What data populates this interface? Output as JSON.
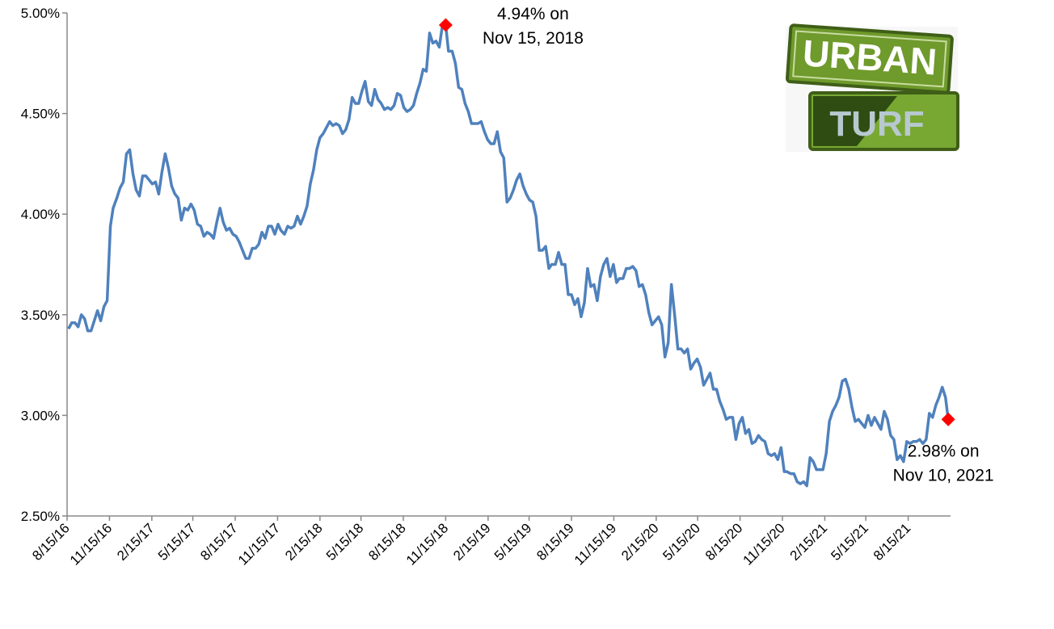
{
  "chart_data": {
    "type": "line",
    "x": [
      "2016-08-18",
      "2016-08-25",
      "2016-09-01",
      "2016-09-08",
      "2016-09-15",
      "2016-09-22",
      "2016-09-29",
      "2016-10-06",
      "2016-10-13",
      "2016-10-20",
      "2016-10-27",
      "2016-11-03",
      "2016-11-10",
      "2016-11-17",
      "2016-11-23",
      "2016-12-01",
      "2016-12-08",
      "2016-12-15",
      "2016-12-22",
      "2016-12-29",
      "2017-01-05",
      "2017-01-12",
      "2017-01-19",
      "2017-01-26",
      "2017-02-02",
      "2017-02-09",
      "2017-02-16",
      "2017-02-23",
      "2017-03-02",
      "2017-03-09",
      "2017-03-16",
      "2017-03-23",
      "2017-03-30",
      "2017-04-06",
      "2017-04-13",
      "2017-04-20",
      "2017-04-27",
      "2017-05-04",
      "2017-05-11",
      "2017-05-18",
      "2017-05-25",
      "2017-06-01",
      "2017-06-08",
      "2017-06-15",
      "2017-06-22",
      "2017-06-29",
      "2017-07-06",
      "2017-07-13",
      "2017-07-20",
      "2017-07-27",
      "2017-08-03",
      "2017-08-10",
      "2017-08-17",
      "2017-08-24",
      "2017-08-31",
      "2017-09-07",
      "2017-09-14",
      "2017-09-21",
      "2017-09-28",
      "2017-10-05",
      "2017-10-12",
      "2017-10-19",
      "2017-10-26",
      "2017-11-02",
      "2017-11-09",
      "2017-11-16",
      "2017-11-22",
      "2017-11-30",
      "2017-12-07",
      "2017-12-14",
      "2017-12-21",
      "2017-12-28",
      "2018-01-04",
      "2018-01-11",
      "2018-01-18",
      "2018-01-25",
      "2018-02-01",
      "2018-02-08",
      "2018-02-15",
      "2018-02-22",
      "2018-03-01",
      "2018-03-08",
      "2018-03-15",
      "2018-03-22",
      "2018-03-29",
      "2018-04-05",
      "2018-04-12",
      "2018-04-19",
      "2018-04-26",
      "2018-05-03",
      "2018-05-10",
      "2018-05-17",
      "2018-05-24",
      "2018-05-31",
      "2018-06-07",
      "2018-06-14",
      "2018-06-21",
      "2018-06-28",
      "2018-07-05",
      "2018-07-12",
      "2018-07-19",
      "2018-07-26",
      "2018-08-02",
      "2018-08-09",
      "2018-08-16",
      "2018-08-23",
      "2018-08-30",
      "2018-09-06",
      "2018-09-13",
      "2018-09-20",
      "2018-09-27",
      "2018-10-04",
      "2018-10-11",
      "2018-10-18",
      "2018-10-25",
      "2018-11-01",
      "2018-11-08",
      "2018-11-15",
      "2018-11-21",
      "2018-11-29",
      "2018-12-06",
      "2018-12-13",
      "2018-12-20",
      "2018-12-27",
      "2019-01-03",
      "2019-01-10",
      "2019-01-17",
      "2019-01-24",
      "2019-01-31",
      "2019-02-07",
      "2019-02-14",
      "2019-02-21",
      "2019-02-28",
      "2019-03-07",
      "2019-03-14",
      "2019-03-21",
      "2019-03-28",
      "2019-04-04",
      "2019-04-11",
      "2019-04-18",
      "2019-04-25",
      "2019-05-02",
      "2019-05-09",
      "2019-05-16",
      "2019-05-23",
      "2019-05-30",
      "2019-06-06",
      "2019-06-13",
      "2019-06-20",
      "2019-06-27",
      "2019-07-03",
      "2019-07-11",
      "2019-07-18",
      "2019-07-25",
      "2019-08-01",
      "2019-08-08",
      "2019-08-15",
      "2019-08-22",
      "2019-08-29",
      "2019-09-05",
      "2019-09-12",
      "2019-09-19",
      "2019-09-26",
      "2019-10-03",
      "2019-10-10",
      "2019-10-17",
      "2019-10-24",
      "2019-10-31",
      "2019-11-07",
      "2019-11-14",
      "2019-11-21",
      "2019-11-27",
      "2019-12-05",
      "2019-12-12",
      "2019-12-19",
      "2019-12-26",
      "2020-01-02",
      "2020-01-09",
      "2020-01-16",
      "2020-01-23",
      "2020-01-30",
      "2020-02-06",
      "2020-02-13",
      "2020-02-20",
      "2020-02-27",
      "2020-03-05",
      "2020-03-12",
      "2020-03-19",
      "2020-03-26",
      "2020-04-02",
      "2020-04-09",
      "2020-04-16",
      "2020-04-23",
      "2020-04-30",
      "2020-05-07",
      "2020-05-14",
      "2020-05-21",
      "2020-05-28",
      "2020-06-04",
      "2020-06-11",
      "2020-06-18",
      "2020-06-25",
      "2020-07-02",
      "2020-07-09",
      "2020-07-16",
      "2020-07-23",
      "2020-07-30",
      "2020-08-06",
      "2020-08-13",
      "2020-08-20",
      "2020-08-27",
      "2020-09-03",
      "2020-09-10",
      "2020-09-17",
      "2020-09-24",
      "2020-10-01",
      "2020-10-08",
      "2020-10-15",
      "2020-10-22",
      "2020-10-29",
      "2020-11-05",
      "2020-11-12",
      "2020-11-19",
      "2020-11-25",
      "2020-12-03",
      "2020-12-10",
      "2020-12-17",
      "2020-12-24",
      "2020-12-31",
      "2021-01-07",
      "2021-01-14",
      "2021-01-21",
      "2021-01-28",
      "2021-02-04",
      "2021-02-11",
      "2021-02-18",
      "2021-02-25",
      "2021-03-04",
      "2021-03-11",
      "2021-03-18",
      "2021-03-25",
      "2021-04-01",
      "2021-04-08",
      "2021-04-15",
      "2021-04-22",
      "2021-04-29",
      "2021-05-06",
      "2021-05-13",
      "2021-05-20",
      "2021-05-27",
      "2021-06-03",
      "2021-06-10",
      "2021-06-17",
      "2021-06-24",
      "2021-07-01",
      "2021-07-08",
      "2021-07-15",
      "2021-07-22",
      "2021-07-29",
      "2021-08-05",
      "2021-08-12",
      "2021-08-19",
      "2021-08-26",
      "2021-09-02",
      "2021-09-09",
      "2021-09-16",
      "2021-09-23",
      "2021-09-30",
      "2021-10-07",
      "2021-10-14",
      "2021-10-21",
      "2021-10-28",
      "2021-11-04",
      "2021-11-10"
    ],
    "series": [
      {
        "color": "#4f81bd",
        "values": [
          3.43,
          3.46,
          3.46,
          3.44,
          3.5,
          3.48,
          3.42,
          3.42,
          3.47,
          3.52,
          3.47,
          3.54,
          3.57,
          3.94,
          4.03,
          4.08,
          4.13,
          4.16,
          4.3,
          4.32,
          4.2,
          4.12,
          4.09,
          4.19,
          4.19,
          4.17,
          4.15,
          4.16,
          4.1,
          4.21,
          4.3,
          4.23,
          4.14,
          4.1,
          4.08,
          3.97,
          4.03,
          4.02,
          4.05,
          4.02,
          3.95,
          3.94,
          3.89,
          3.91,
          3.9,
          3.88,
          3.96,
          4.03,
          3.96,
          3.92,
          3.93,
          3.9,
          3.89,
          3.86,
          3.82,
          3.78,
          3.78,
          3.83,
          3.83,
          3.85,
          3.91,
          3.88,
          3.94,
          3.94,
          3.9,
          3.95,
          3.92,
          3.9,
          3.94,
          3.93,
          3.94,
          3.99,
          3.95,
          3.99,
          4.04,
          4.15,
          4.22,
          4.32,
          4.38,
          4.4,
          4.43,
          4.46,
          4.44,
          4.45,
          4.44,
          4.4,
          4.42,
          4.47,
          4.58,
          4.55,
          4.55,
          4.61,
          4.66,
          4.56,
          4.54,
          4.62,
          4.57,
          4.55,
          4.52,
          4.53,
          4.52,
          4.54,
          4.6,
          4.59,
          4.53,
          4.51,
          4.52,
          4.54,
          4.6,
          4.65,
          4.72,
          4.71,
          4.9,
          4.85,
          4.86,
          4.83,
          4.94,
          4.94,
          4.81,
          4.81,
          4.75,
          4.63,
          4.62,
          4.55,
          4.51,
          4.45,
          4.45,
          4.45,
          4.46,
          4.41,
          4.37,
          4.35,
          4.35,
          4.41,
          4.31,
          4.28,
          4.06,
          4.08,
          4.12,
          4.17,
          4.2,
          4.14,
          4.1,
          4.07,
          4.06,
          3.99,
          3.82,
          3.82,
          3.84,
          3.73,
          3.75,
          3.75,
          3.81,
          3.75,
          3.75,
          3.6,
          3.6,
          3.55,
          3.58,
          3.49,
          3.56,
          3.73,
          3.64,
          3.65,
          3.57,
          3.69,
          3.75,
          3.78,
          3.69,
          3.75,
          3.66,
          3.68,
          3.68,
          3.73,
          3.73,
          3.74,
          3.72,
          3.64,
          3.65,
          3.6,
          3.51,
          3.45,
          3.47,
          3.49,
          3.45,
          3.29,
          3.36,
          3.65,
          3.5,
          3.33,
          3.33,
          3.31,
          3.33,
          3.23,
          3.26,
          3.28,
          3.24,
          3.15,
          3.18,
          3.21,
          3.13,
          3.13,
          3.07,
          3.03,
          2.98,
          2.99,
          2.99,
          2.88,
          2.96,
          2.99,
          2.91,
          2.93,
          2.86,
          2.87,
          2.9,
          2.88,
          2.87,
          2.81,
          2.8,
          2.81,
          2.78,
          2.84,
          2.72,
          2.72,
          2.71,
          2.71,
          2.67,
          2.66,
          2.67,
          2.65,
          2.79,
          2.77,
          2.73,
          2.73,
          2.73,
          2.81,
          2.97,
          3.02,
          3.05,
          3.09,
          3.17,
          3.18,
          3.13,
          3.04,
          2.97,
          2.98,
          2.96,
          2.94,
          3.0,
          2.95,
          2.99,
          2.96,
          2.93,
          3.02,
          2.98,
          2.9,
          2.88,
          2.78,
          2.8,
          2.77,
          2.87,
          2.86,
          2.87,
          2.87,
          2.88,
          2.86,
          2.88,
          3.01,
          2.99,
          3.05,
          3.09,
          3.14,
          3.09,
          2.98
        ]
      }
    ],
    "xlim": [
      "2016-08-15",
      "2021-11-15"
    ],
    "xticks": [
      {
        "value": "2016-08-15",
        "label": "8/15/16"
      },
      {
        "value": "2016-11-15",
        "label": "11/15/16"
      },
      {
        "value": "2017-02-15",
        "label": "2/15/17"
      },
      {
        "value": "2017-05-15",
        "label": "5/15/17"
      },
      {
        "value": "2017-08-15",
        "label": "8/15/17"
      },
      {
        "value": "2017-11-15",
        "label": "11/15/17"
      },
      {
        "value": "2018-02-15",
        "label": "2/15/18"
      },
      {
        "value": "2018-05-15",
        "label": "5/15/18"
      },
      {
        "value": "2018-08-15",
        "label": "8/15/18"
      },
      {
        "value": "2018-11-15",
        "label": "11/15/18"
      },
      {
        "value": "2019-02-15",
        "label": "2/15/19"
      },
      {
        "value": "2019-05-15",
        "label": "5/15/19"
      },
      {
        "value": "2019-08-15",
        "label": "8/15/19"
      },
      {
        "value": "2019-11-15",
        "label": "11/15/19"
      },
      {
        "value": "2020-02-15",
        "label": "2/15/20"
      },
      {
        "value": "2020-05-15",
        "label": "5/15/20"
      },
      {
        "value": "2020-08-15",
        "label": "8/15/20"
      },
      {
        "value": "2020-11-15",
        "label": "11/15/20"
      },
      {
        "value": "2021-02-15",
        "label": "2/15/21"
      },
      {
        "value": "2021-05-15",
        "label": "5/15/21"
      },
      {
        "value": "2021-08-15",
        "label": "8/15/21"
      }
    ],
    "ylim": [
      2.5,
      5.0
    ],
    "yticks": [
      {
        "value": 2.5,
        "label": "2.50%"
      },
      {
        "value": 3.0,
        "label": "3.00%"
      },
      {
        "value": 3.5,
        "label": "3.50%"
      },
      {
        "value": 4.0,
        "label": "4.00%"
      },
      {
        "value": 4.5,
        "label": "4.50%"
      },
      {
        "value": 5.0,
        "label": "5.00%"
      }
    ],
    "grid": false,
    "annotations": [
      {
        "text": [
          "4.94% on",
          "Nov 15, 2018"
        ],
        "x": "2018-11-15",
        "y": 4.94,
        "color": "#ff0000"
      },
      {
        "text": [
          "2.98% on",
          "Nov 10, 2021"
        ],
        "x": "2021-11-10",
        "y": 2.98,
        "color": "#ff0000"
      }
    ],
    "logo": [
      "URBAN",
      "TURF"
    ]
  }
}
